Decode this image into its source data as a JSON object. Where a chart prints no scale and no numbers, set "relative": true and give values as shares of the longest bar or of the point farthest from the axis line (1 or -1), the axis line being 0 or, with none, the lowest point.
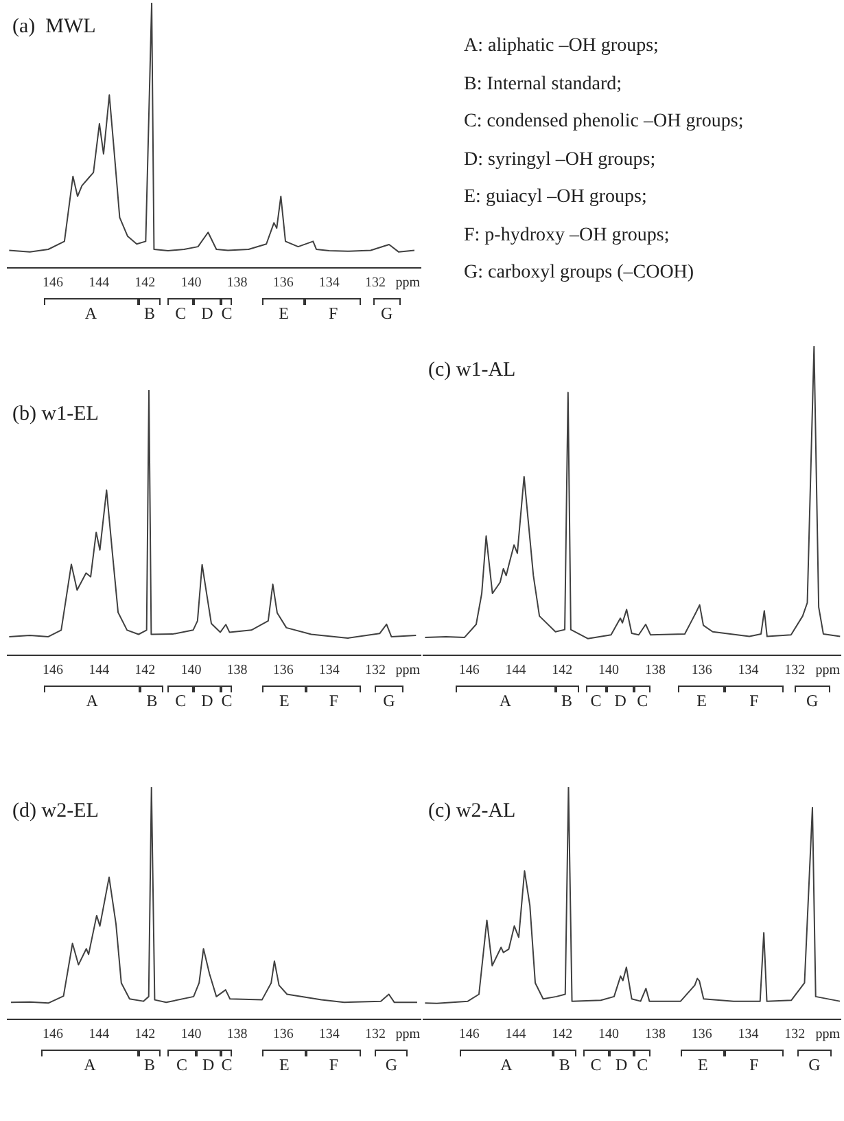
{
  "chart_data": [
    {
      "type": "line",
      "title": "(a)  MWL",
      "xlabel": "ppm",
      "relative": true,
      "xlim": [
        148,
        130
      ],
      "xticks": [
        146,
        144,
        142,
        140,
        138,
        136,
        134,
        132
      ],
      "annotations": [
        "A",
        "B",
        "C",
        "D",
        "C",
        "E",
        "F",
        "G"
      ],
      "x": [
        147.9,
        147.0,
        146.2,
        145.5,
        145.13,
        144.93,
        144.74,
        144.44,
        144.24,
        143.98,
        143.8,
        143.55,
        143.35,
        143.1,
        142.76,
        142.36,
        141.97,
        141.71,
        141.61,
        141.0,
        140.3,
        139.7,
        139.26,
        138.9,
        138.4,
        137.5,
        136.73,
        136.4,
        136.28,
        136.1,
        135.9,
        135.35,
        134.7,
        134.56,
        134.0,
        133.17,
        132.2,
        131.4,
        130.98,
        130.3
      ],
      "series": [
        {
          "color": "#404040",
          "values": [
            0.066,
            0.06,
            0.07,
            0.1,
            0.345,
            0.27,
            0.31,
            0.34,
            0.36,
            0.544,
            0.43,
            0.652,
            0.45,
            0.19,
            0.12,
            0.09,
            0.1,
            1.0,
            0.07,
            0.065,
            0.07,
            0.08,
            0.134,
            0.07,
            0.066,
            0.07,
            0.09,
            0.17,
            0.15,
            0.27,
            0.1,
            0.08,
            0.1,
            0.07,
            0.065,
            0.063,
            0.066,
            0.088,
            0.06,
            0.066
          ]
        }
      ]
    },
    {
      "type": "other",
      "annotations": [
        "A: aliphatic –OH groups;",
        "B: Internal standard;",
        "C: condensed phenolic –OH groups;",
        "D: syringyl –OH groups;",
        "E: guiacyl –OH groups;",
        "F: p-hydroxy –OH groups;",
        "G: carboxyl groups (–COOH)"
      ]
    },
    {
      "type": "line",
      "title": "(b) w1-EL",
      "xlabel": "ppm",
      "relative": true,
      "xlim": [
        148,
        130
      ],
      "xticks": [
        146,
        144,
        142,
        140,
        138,
        136,
        134,
        132
      ],
      "annotations": [
        "A",
        "B",
        "C",
        "D",
        "C",
        "E",
        "F",
        "G"
      ],
      "x": [
        147.9,
        147.0,
        146.2,
        145.64,
        145.2,
        144.95,
        144.56,
        144.36,
        144.12,
        143.96,
        143.67,
        143.41,
        143.17,
        142.78,
        142.28,
        141.93,
        141.83,
        141.73,
        140.8,
        139.91,
        139.72,
        139.52,
        139.32,
        139.12,
        138.73,
        138.49,
        138.33,
        137.38,
        136.65,
        136.45,
        136.26,
        135.86,
        134.78,
        133.19,
        131.81,
        131.51,
        131.3,
        130.23
      ],
      "series": [
        {
          "color": "#404040",
          "values": [
            0.07,
            0.075,
            0.07,
            0.095,
            0.343,
            0.246,
            0.31,
            0.296,
            0.464,
            0.397,
            0.623,
            0.38,
            0.162,
            0.095,
            0.079,
            0.095,
            1.0,
            0.079,
            0.08,
            0.095,
            0.13,
            0.342,
            0.23,
            0.12,
            0.087,
            0.116,
            0.087,
            0.095,
            0.13,
            0.268,
            0.16,
            0.104,
            0.079,
            0.065,
            0.082,
            0.117,
            0.07,
            0.075
          ]
        }
      ]
    },
    {
      "type": "line",
      "title": "(c) w1-AL",
      "xlabel": "ppm",
      "relative": true,
      "xlim": [
        148,
        130
      ],
      "xticks": [
        146,
        144,
        142,
        140,
        138,
        136,
        134,
        132
      ],
      "annotations": [
        "A",
        "B",
        "C",
        "D",
        "C",
        "E",
        "F",
        "G"
      ],
      "x": [
        147.9,
        147.0,
        146.2,
        145.7,
        145.46,
        145.27,
        145.0,
        144.67,
        144.53,
        144.41,
        144.27,
        144.07,
        143.93,
        143.64,
        143.44,
        143.24,
        142.98,
        142.29,
        141.89,
        141.75,
        141.63,
        140.9,
        139.9,
        139.5,
        139.41,
        139.23,
        139.01,
        138.71,
        138.41,
        138.2,
        136.73,
        136.43,
        136.23,
        136.09,
        135.93,
        135.53,
        133.95,
        133.45,
        133.31,
        133.19,
        132.16,
        131.66,
        131.46,
        131.17,
        130.97,
        130.77,
        130.05
      ],
      "series": [
        {
          "color": "#404040",
          "values": [
            0.058,
            0.06,
            0.058,
            0.1,
            0.2,
            0.386,
            0.2,
            0.236,
            0.28,
            0.258,
            0.3,
            0.357,
            0.33,
            0.578,
            0.418,
            0.258,
            0.127,
            0.076,
            0.083,
            0.85,
            0.083,
            0.054,
            0.066,
            0.12,
            0.105,
            0.148,
            0.071,
            0.066,
            0.1,
            0.066,
            0.069,
            0.112,
            0.141,
            0.163,
            0.097,
            0.076,
            0.061,
            0.069,
            0.144,
            0.061,
            0.066,
            0.127,
            0.17,
            1.0,
            0.156,
            0.069,
            0.061
          ]
        }
      ]
    },
    {
      "type": "line",
      "title": "(d) w2-EL",
      "xlabel": "ppm",
      "relative": true,
      "xlim": [
        148,
        130
      ],
      "xticks": [
        146,
        144,
        142,
        140,
        138,
        136,
        134,
        132
      ],
      "annotations": [
        "A",
        "B",
        "C",
        "D",
        "C",
        "E",
        "F",
        "G"
      ],
      "x": [
        147.82,
        147.0,
        146.2,
        145.54,
        145.15,
        144.89,
        144.55,
        144.45,
        144.1,
        143.96,
        143.56,
        143.26,
        143.03,
        142.67,
        142.07,
        141.84,
        141.72,
        141.58,
        141.08,
        139.89,
        139.65,
        139.46,
        139.2,
        138.9,
        138.5,
        138.31,
        136.92,
        136.52,
        136.38,
        136.18,
        135.83,
        134.34,
        133.35,
        131.76,
        131.41,
        131.17,
        130.18
      ],
      "series": [
        {
          "color": "#404040",
          "values": [
            0.073,
            0.075,
            0.07,
            0.1,
            0.327,
            0.235,
            0.304,
            0.28,
            0.447,
            0.402,
            0.612,
            0.41,
            0.157,
            0.088,
            0.078,
            0.098,
            1.0,
            0.084,
            0.073,
            0.098,
            0.157,
            0.304,
            0.196,
            0.098,
            0.127,
            0.088,
            0.084,
            0.157,
            0.251,
            0.147,
            0.108,
            0.084,
            0.073,
            0.078,
            0.108,
            0.073,
            0.073
          ]
        }
      ]
    },
    {
      "type": "line",
      "title": "(c) w2-AL",
      "xlabel": "ppm",
      "relative": true,
      "xlim": [
        148,
        130
      ],
      "xticks": [
        146,
        144,
        142,
        140,
        138,
        136,
        134,
        132
      ],
      "annotations": [
        "A",
        "B",
        "C",
        "D",
        "C",
        "E",
        "F",
        "G"
      ],
      "x": [
        147.9,
        147.39,
        146.06,
        145.58,
        145.24,
        145.01,
        144.63,
        144.53,
        144.3,
        144.06,
        143.87,
        143.62,
        143.39,
        143.16,
        142.82,
        142.25,
        141.87,
        141.73,
        141.58,
        140.34,
        139.77,
        139.49,
        139.39,
        139.24,
        139.01,
        138.63,
        138.4,
        138.25,
        136.91,
        136.3,
        136.19,
        136.1,
        135.92,
        134.63,
        133.49,
        133.33,
        133.2,
        132.15,
        131.58,
        131.24,
        131.1,
        130.06
      ],
      "series": [
        {
          "color": "#404040",
          "values": [
            0.07,
            0.069,
            0.078,
            0.108,
            0.427,
            0.231,
            0.31,
            0.288,
            0.302,
            0.402,
            0.353,
            0.639,
            0.49,
            0.157,
            0.088,
            0.098,
            0.108,
            1.0,
            0.078,
            0.082,
            0.098,
            0.186,
            0.167,
            0.224,
            0.088,
            0.078,
            0.133,
            0.078,
            0.078,
            0.147,
            0.176,
            0.165,
            0.088,
            0.078,
            0.078,
            0.373,
            0.078,
            0.082,
            0.157,
            0.912,
            0.098,
            0.078
          ]
        }
      ]
    }
  ]
}
